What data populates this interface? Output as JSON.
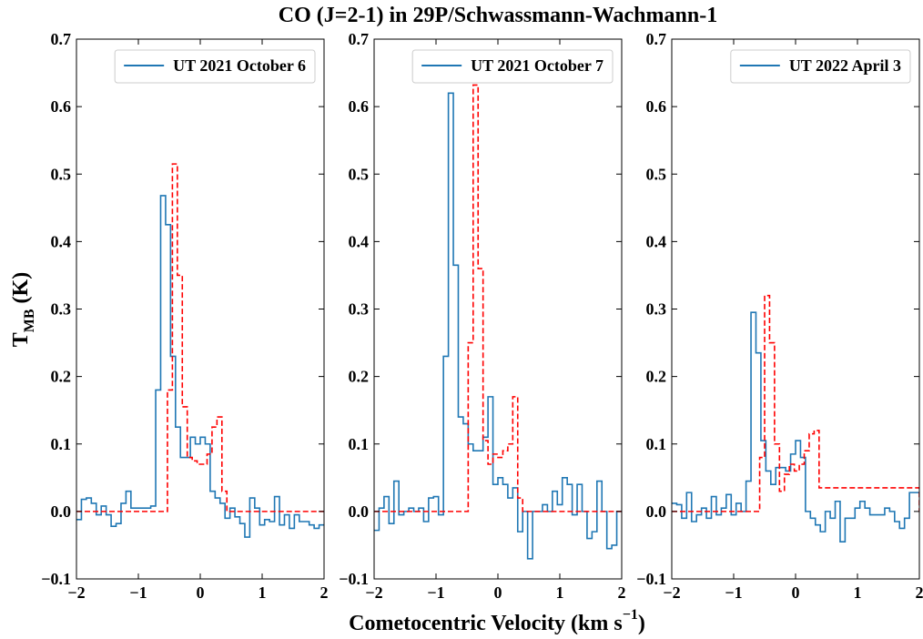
{
  "figure": {
    "title": "CO (J=2-1) in 29P/Schwassmann-Wachmann-1",
    "xlabel_main": "Cometocentric Velocity (km s",
    "xlabel_sup": "−1",
    "xlabel_close": ")",
    "ylabel_main": "T",
    "ylabel_sub": "MB",
    "ylabel_unit": " (K)"
  },
  "chart_data": [
    {
      "type": "line",
      "step": true,
      "xlim": [
        -2,
        2
      ],
      "ylim": [
        -0.1,
        0.7
      ],
      "xticks": [
        -2,
        -1,
        0,
        1,
        2
      ],
      "yticks": [
        -0.1,
        0.0,
        0.1,
        0.2,
        0.3,
        0.4,
        0.5,
        0.6,
        0.7
      ],
      "xtick_labels": [
        "−2",
        "−1",
        "0",
        "1",
        "2"
      ],
      "ytick_labels": [
        "−0.1",
        "0.0",
        "0.1",
        "0.2",
        "0.3",
        "0.4",
        "0.5",
        "0.6",
        "0.7"
      ],
      "legend_position": "top-right",
      "series": [
        {
          "name": "UT 2021 October 6",
          "style": "solid",
          "color": "#1f77b4",
          "x": [
            -2.0,
            -1.92,
            -1.84,
            -1.76,
            -1.68,
            -1.6,
            -1.52,
            -1.44,
            -1.36,
            -1.28,
            -1.2,
            -1.12,
            -1.04,
            -0.96,
            -0.88,
            -0.8,
            -0.72,
            -0.64,
            -0.56,
            -0.48,
            -0.4,
            -0.32,
            -0.24,
            -0.16,
            -0.08,
            0.0,
            0.08,
            0.16,
            0.24,
            0.32,
            0.4,
            0.48,
            0.56,
            0.64,
            0.72,
            0.8,
            0.88,
            0.96,
            1.04,
            1.12,
            1.2,
            1.28,
            1.36,
            1.44,
            1.52,
            1.6,
            1.68,
            1.76,
            1.84,
            1.92
          ],
          "y": [
            -0.012,
            0.018,
            0.02,
            0.012,
            -0.005,
            0.008,
            -0.005,
            -0.022,
            -0.018,
            0.012,
            0.03,
            0.005,
            0.005,
            0.005,
            0.005,
            0.008,
            0.18,
            0.468,
            0.425,
            0.23,
            0.125,
            0.08,
            0.08,
            0.11,
            0.1,
            0.11,
            0.1,
            0.03,
            0.02,
            0.012,
            -0.01,
            0.005,
            -0.008,
            -0.018,
            -0.038,
            0.02,
            0.005,
            -0.02,
            -0.012,
            -0.015,
            0.022,
            -0.02,
            -0.005,
            -0.025,
            -0.005,
            -0.015,
            -0.015,
            -0.02,
            -0.025,
            -0.02
          ]
        },
        {
          "name": "",
          "style": "dashed",
          "color": "#ff0000",
          "x": [
            -2.0,
            -0.61,
            -0.53,
            -0.45,
            -0.37,
            -0.29,
            -0.21,
            -0.13,
            -0.05,
            0.03,
            0.11,
            0.19,
            0.27,
            0.35,
            0.43,
            2.0
          ],
          "y": [
            0.0,
            0.0,
            0.18,
            0.515,
            0.35,
            0.155,
            0.08,
            0.075,
            0.07,
            0.07,
            0.085,
            0.125,
            0.14,
            0.03,
            0.0,
            0.0
          ]
        }
      ]
    },
    {
      "type": "line",
      "step": true,
      "xlim": [
        -2,
        2
      ],
      "ylim": [
        -0.1,
        0.7
      ],
      "xticks": [
        -2,
        -1,
        0,
        1,
        2
      ],
      "yticks": [
        -0.1,
        0.0,
        0.1,
        0.2,
        0.3,
        0.4,
        0.5,
        0.6,
        0.7
      ],
      "xtick_labels": [
        "−2",
        "−1",
        "0",
        "1",
        "2"
      ],
      "ytick_labels": [
        "−0.1",
        "0.0",
        "0.1",
        "0.2",
        "0.3",
        "0.4",
        "0.5",
        "0.6",
        "0.7"
      ],
      "legend_position": "top-right",
      "series": [
        {
          "name": "UT 2021 October 7",
          "style": "solid",
          "color": "#1f77b4",
          "x": [
            -2.0,
            -1.92,
            -1.84,
            -1.76,
            -1.68,
            -1.6,
            -1.52,
            -1.44,
            -1.36,
            -1.28,
            -1.2,
            -1.12,
            -1.04,
            -0.96,
            -0.88,
            -0.8,
            -0.72,
            -0.64,
            -0.56,
            -0.48,
            -0.4,
            -0.32,
            -0.24,
            -0.16,
            -0.08,
            0.0,
            0.08,
            0.16,
            0.24,
            0.32,
            0.4,
            0.48,
            0.56,
            0.64,
            0.72,
            0.8,
            0.88,
            0.96,
            1.04,
            1.12,
            1.2,
            1.28,
            1.36,
            1.44,
            1.52,
            1.6,
            1.68,
            1.76,
            1.84,
            1.92
          ],
          "y": [
            -0.028,
            0.005,
            0.022,
            -0.018,
            0.045,
            -0.005,
            0.0,
            0.005,
            0.0,
            0.005,
            -0.015,
            0.02,
            0.022,
            -0.005,
            0.23,
            0.62,
            0.365,
            0.14,
            0.13,
            0.1,
            0.09,
            0.09,
            0.11,
            0.17,
            0.04,
            0.05,
            0.04,
            0.02,
            0.035,
            -0.03,
            0.0,
            -0.07,
            0.0,
            0.0,
            0.01,
            0.0,
            0.03,
            0.01,
            0.05,
            0.04,
            -0.005,
            0.04,
            0.0,
            -0.04,
            -0.03,
            0.045,
            0.0,
            -0.055,
            -0.05,
            0.0
          ]
        },
        {
          "name": "",
          "style": "dashed",
          "color": "#ff0000",
          "x": [
            -2.0,
            -0.56,
            -0.48,
            -0.4,
            -0.32,
            -0.24,
            -0.16,
            -0.08,
            0.0,
            0.08,
            0.16,
            0.24,
            0.32,
            0.4,
            2.0
          ],
          "y": [
            0.0,
            0.0,
            0.25,
            0.632,
            0.36,
            0.105,
            0.07,
            0.085,
            0.08,
            0.09,
            0.1,
            0.17,
            0.02,
            0.0,
            0.0
          ]
        }
      ]
    },
    {
      "type": "line",
      "step": true,
      "xlim": [
        -2,
        2
      ],
      "ylim": [
        -0.1,
        0.7
      ],
      "xticks": [
        -2,
        -1,
        0,
        1,
        2
      ],
      "yticks": [
        -0.1,
        0.0,
        0.1,
        0.2,
        0.3,
        0.4,
        0.5,
        0.6,
        0.7
      ],
      "xtick_labels": [
        "−2",
        "−1",
        "0",
        "1",
        "2"
      ],
      "ytick_labels": [
        "−0.1",
        "0.0",
        "0.1",
        "0.2",
        "0.3",
        "0.4",
        "0.5",
        "0.6",
        "0.7"
      ],
      "legend_position": "top-right",
      "series": [
        {
          "name": "UT 2022 April 3",
          "style": "solid",
          "color": "#1f77b4",
          "x": [
            -2.0,
            -1.92,
            -1.84,
            -1.76,
            -1.68,
            -1.6,
            -1.52,
            -1.44,
            -1.36,
            -1.28,
            -1.2,
            -1.12,
            -1.04,
            -0.96,
            -0.88,
            -0.8,
            -0.72,
            -0.64,
            -0.56,
            -0.48,
            -0.4,
            -0.32,
            -0.24,
            -0.16,
            -0.08,
            0.0,
            0.08,
            0.16,
            0.24,
            0.32,
            0.4,
            0.48,
            0.56,
            0.64,
            0.72,
            0.8,
            0.88,
            0.96,
            1.04,
            1.12,
            1.2,
            1.28,
            1.36,
            1.44,
            1.52,
            1.6,
            1.68,
            1.76,
            1.84,
            1.92
          ],
          "y": [
            0.012,
            0.01,
            -0.01,
            0.028,
            -0.015,
            -0.005,
            0.005,
            -0.01,
            0.022,
            -0.005,
            0.005,
            0.025,
            -0.005,
            0.012,
            0.0,
            0.045,
            0.295,
            0.235,
            0.105,
            0.06,
            0.04,
            0.065,
            0.065,
            0.06,
            0.085,
            0.105,
            0.08,
            0.0,
            -0.01,
            -0.02,
            -0.03,
            0.0,
            -0.01,
            0.015,
            -0.045,
            -0.01,
            -0.01,
            0.005,
            0.015,
            0.005,
            -0.005,
            -0.005,
            -0.005,
            0.005,
            0.0,
            -0.015,
            -0.025,
            -0.01,
            0.028,
            0.028
          ]
        },
        {
          "name": "",
          "style": "dashed",
          "color": "#ff0000",
          "x": [
            -2.0,
            -0.66,
            -0.58,
            -0.5,
            -0.42,
            -0.34,
            -0.26,
            -0.18,
            -0.1,
            -0.02,
            0.06,
            0.14,
            0.22,
            0.3,
            0.38,
            2.0
          ],
          "y": [
            0.0,
            0.0,
            0.08,
            0.32,
            0.25,
            0.1,
            0.03,
            0.055,
            0.07,
            0.06,
            0.07,
            0.09,
            0.115,
            0.12,
            0.035,
            0.0
          ]
        }
      ]
    }
  ]
}
